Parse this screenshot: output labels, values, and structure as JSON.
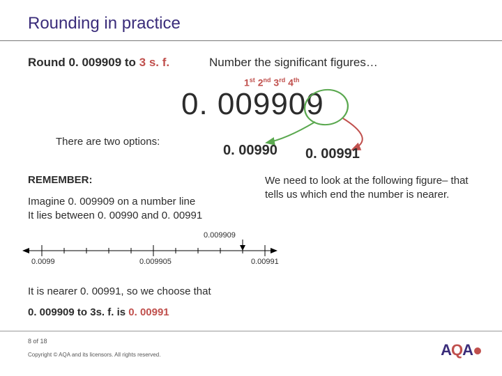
{
  "title": "Rounding in practice",
  "instruction_prefix": "Round 0. 009909 to ",
  "instruction_accent": "3 s. f.",
  "number_hint": "Number the significant figures…",
  "ordinals_html": "1<sup>st</sup> 2<sup>nd</sup> 3<sup>rd</sup> 4<sup>th</sup>",
  "big_number": "0. 009909",
  "two_options": "There are two options:",
  "option1": "0. 00990",
  "option2": "0. 00991",
  "remember": "REMEMBER:",
  "imagine_line1": "Imagine 0. 009909 on a number line",
  "imagine_line2": "It lies between 0. 00990 and 0. 00991",
  "explain": "We need to look at the following figure– that tells us which end the number is nearer.",
  "numberline": {
    "labels": [
      "0.0099",
      "0.009905",
      "0.00991"
    ],
    "top_label": "0.009909"
  },
  "nearer": "It is nearer 0. 00991, so we choose that",
  "answer_prefix": "0. 009909 to 3s. f. is ",
  "answer_accent": "0. 00991",
  "footer": {
    "page": "8 of 18",
    "copyright": "Copyright © AQA and its licensors. All rights reserved."
  },
  "colors": {
    "title": "#3a2c7a",
    "accent": "#c0504d",
    "circle": "#5aa84f",
    "arrow1": "#5aa84f",
    "arrow2": "#c0504d"
  }
}
